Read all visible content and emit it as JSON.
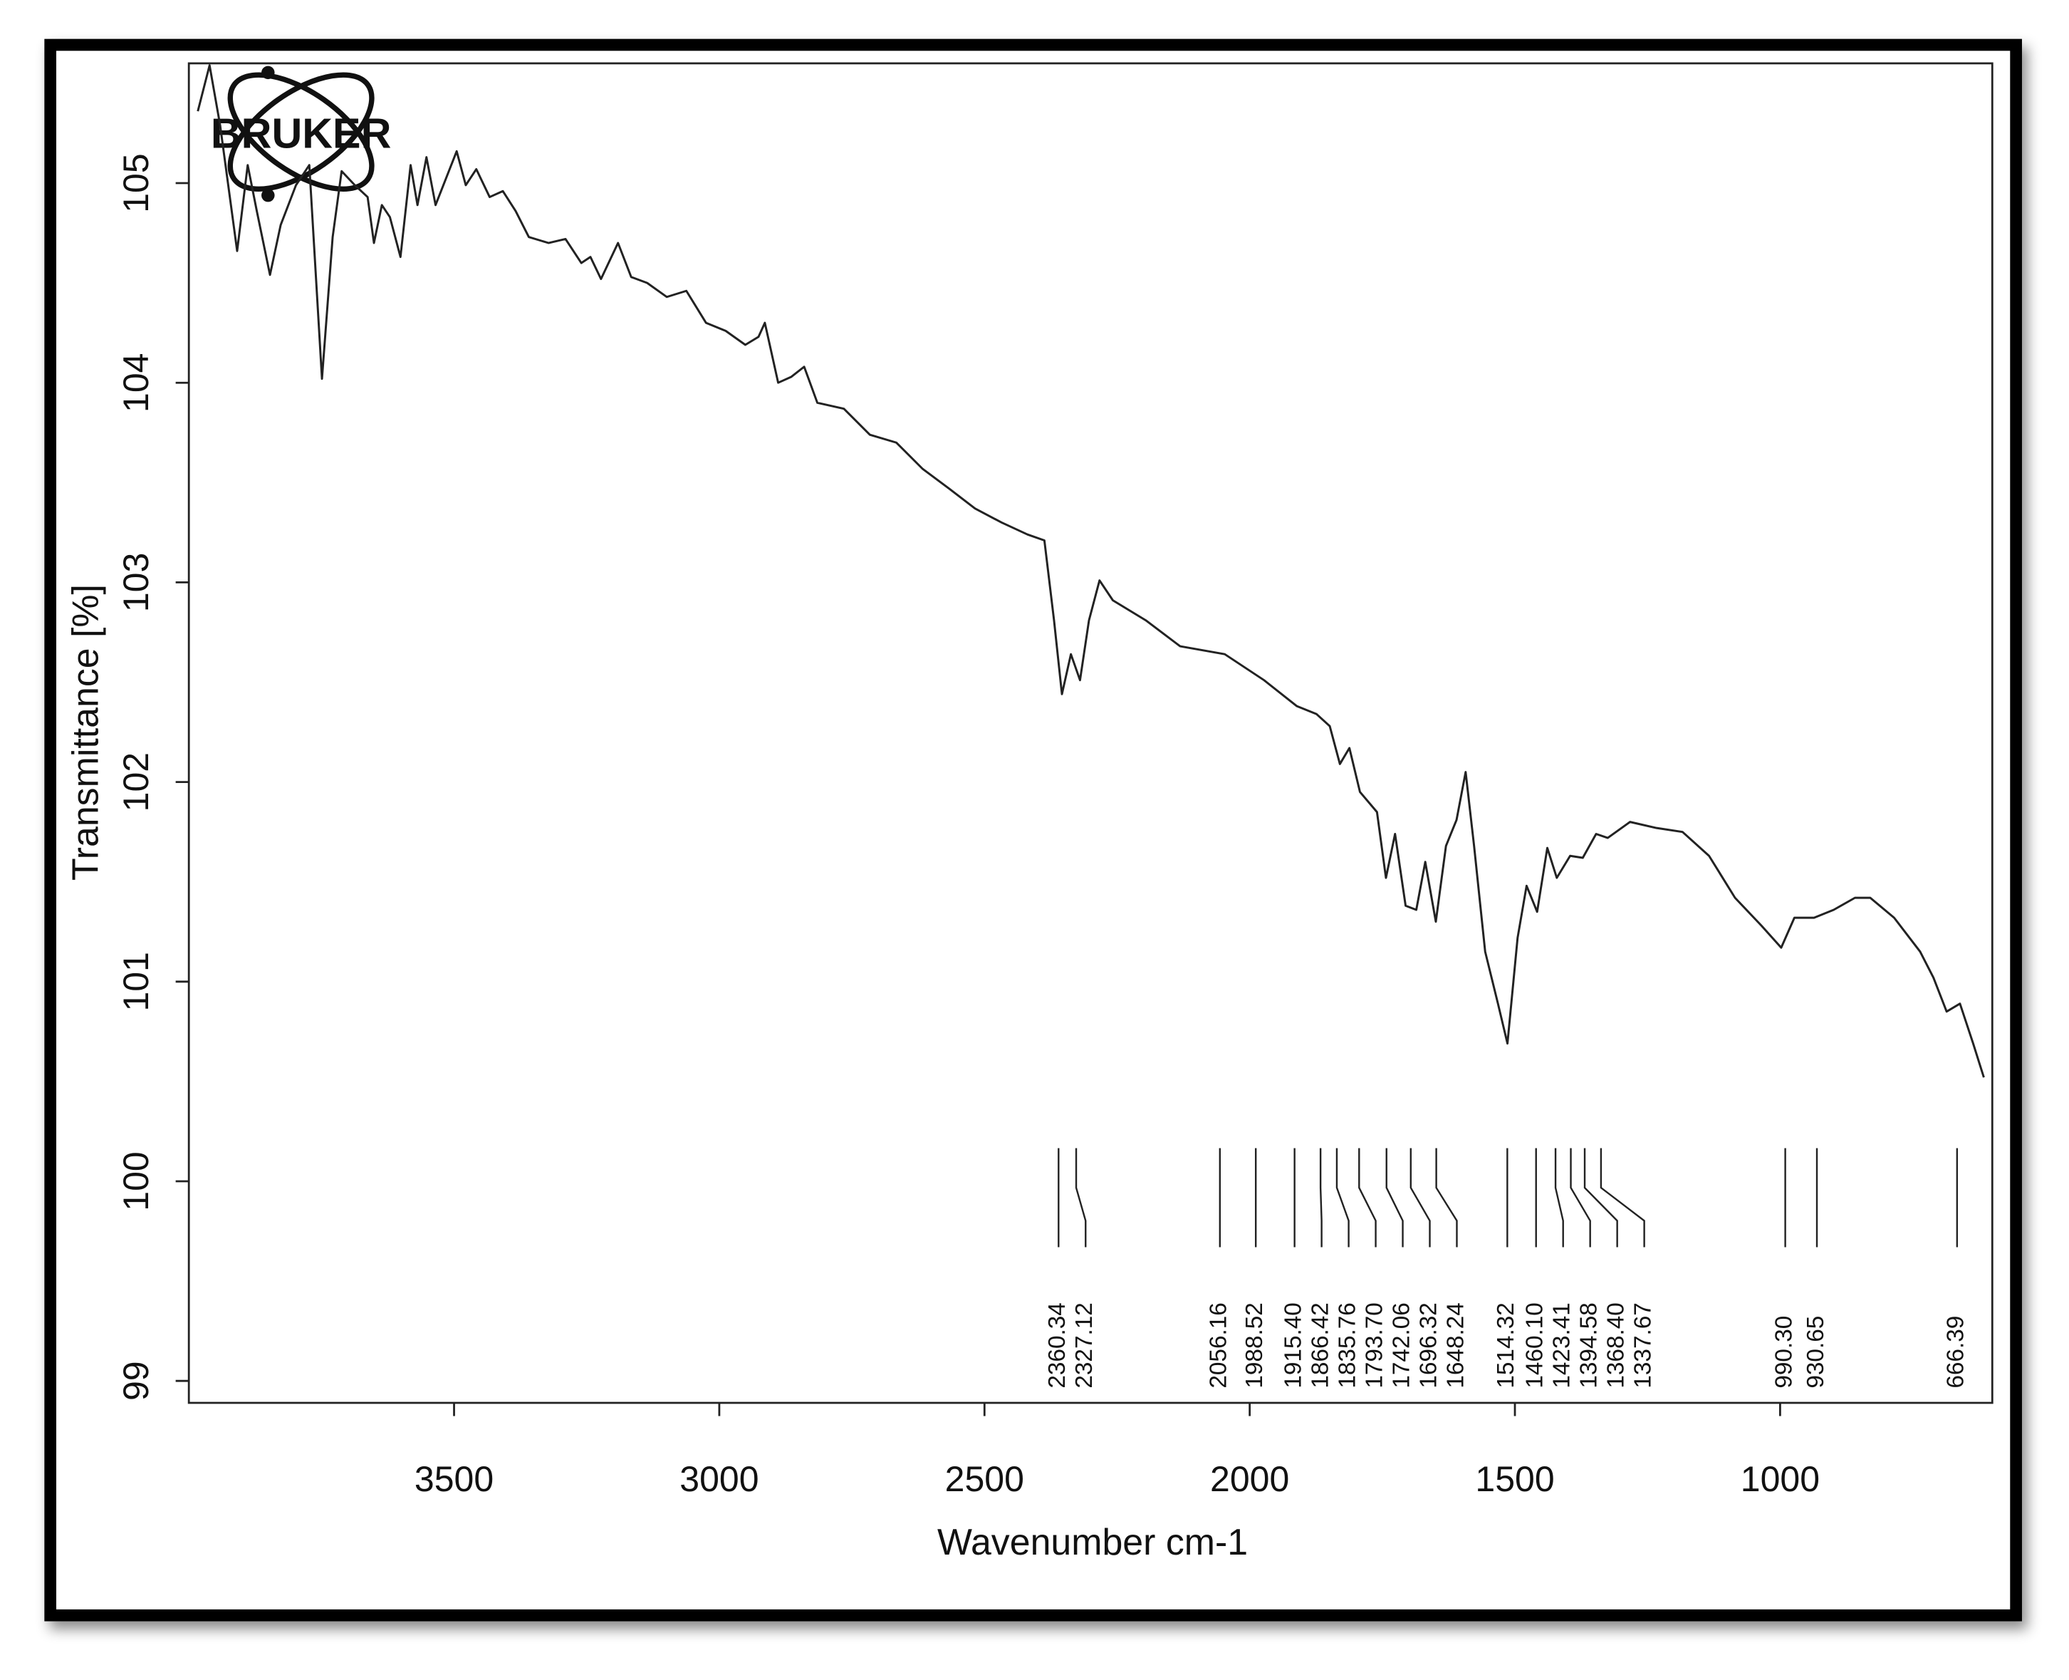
{
  "chart_data": {
    "type": "line",
    "logo": "BRUKER",
    "y_label": "Transmittance [%]",
    "x_label": "Wavenumber cm-1",
    "color": "#222222",
    "xlim": [
      4000,
      600
    ],
    "ylim": [
      98.89,
      105.6
    ],
    "xticks": [
      3500,
      3000,
      2500,
      2000,
      1500,
      1000
    ],
    "yticks": [
      99,
      100,
      101,
      102,
      103,
      104,
      105
    ],
    "x": [
      3983,
      3961,
      3941,
      3909,
      3889,
      3872,
      3847,
      3827,
      3798,
      3773,
      3749,
      3729,
      3712,
      3687,
      3663,
      3651,
      3636,
      3621,
      3601,
      3582,
      3569,
      3552,
      3535,
      3495,
      3478,
      3458,
      3433,
      3408,
      3384,
      3359,
      3322,
      3290,
      3260,
      3243,
      3223,
      3191,
      3166,
      3136,
      3099,
      3062,
      3025,
      2988,
      2951,
      2926,
      2914,
      2889,
      2864,
      2840,
      2815,
      2765,
      2716,
      2666,
      2617,
      2567,
      2518,
      2468,
      2419,
      2387,
      2369,
      2354,
      2337,
      2320,
      2303,
      2283,
      2258,
      2196,
      2131,
      2047,
      1973,
      1911,
      1874,
      1849,
      1830,
      1812,
      1792,
      1760,
      1743,
      1726,
      1706,
      1686,
      1669,
      1649,
      1630,
      1610,
      1593,
      1577,
      1556,
      1532,
      1514,
      1495,
      1478,
      1458,
      1439,
      1421,
      1396,
      1372,
      1347,
      1325,
      1283,
      1233,
      1184,
      1134,
      1085,
      1035,
      998,
      973,
      936,
      899,
      859,
      830,
      785,
      736,
      711,
      686,
      661,
      636,
      616
    ],
    "values": [
      105.36,
      105.59,
      105.29,
      104.66,
      105.09,
      104.86,
      104.54,
      104.79,
      104.99,
      105.09,
      104.02,
      104.73,
      105.06,
      104.99,
      104.93,
      104.7,
      104.89,
      104.83,
      104.63,
      105.09,
      104.89,
      105.13,
      104.89,
      105.16,
      104.99,
      105.07,
      104.93,
      104.96,
      104.86,
      104.73,
      104.7,
      104.72,
      104.6,
      104.63,
      104.52,
      104.7,
      104.53,
      104.5,
      104.43,
      104.46,
      104.3,
      104.26,
      104.19,
      104.23,
      104.3,
      104.0,
      104.03,
      104.08,
      103.9,
      103.87,
      103.74,
      103.7,
      103.57,
      103.47,
      103.37,
      103.3,
      103.24,
      103.21,
      102.81,
      102.44,
      102.64,
      102.51,
      102.81,
      103.01,
      102.91,
      102.81,
      102.68,
      102.64,
      102.51,
      102.38,
      102.34,
      102.28,
      102.09,
      102.17,
      101.95,
      101.85,
      101.52,
      101.74,
      101.38,
      101.36,
      101.6,
      101.3,
      101.68,
      101.81,
      102.05,
      101.68,
      101.15,
      100.89,
      100.69,
      101.22,
      101.48,
      101.35,
      101.67,
      101.52,
      101.63,
      101.62,
      101.74,
      101.72,
      101.8,
      101.77,
      101.75,
      101.63,
      101.42,
      101.28,
      101.17,
      101.32,
      101.32,
      101.36,
      101.42,
      101.42,
      101.32,
      101.15,
      101.02,
      100.85,
      100.89,
      100.69,
      100.52
    ],
    "peaks": [
      2360.34,
      2327.12,
      2056.16,
      1988.52,
      {
        "value": 1915.4,
        "label": "1915.40"
      },
      1866.42,
      1835.76,
      {
        "value": 1793.7,
        "label": "1793.70"
      },
      1742.06,
      1696.32,
      1648.24,
      1514.32,
      {
        "value": 1460.1,
        "label": "1460.10"
      },
      1423.41,
      1394.58,
      {
        "value": 1368.4,
        "label": "1368.40"
      },
      1337.67,
      {
        "value": 990.3,
        "label": "990.30"
      },
      930.65,
      666.39
    ]
  }
}
